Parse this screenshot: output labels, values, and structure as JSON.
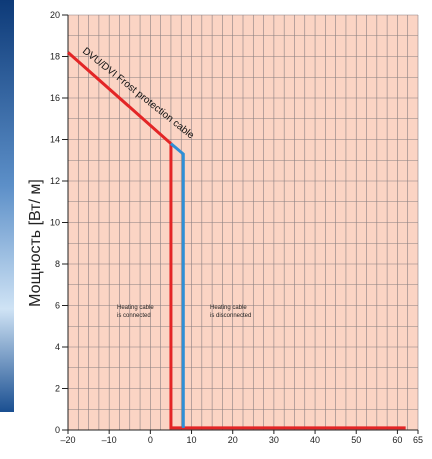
{
  "chart_data": {
    "type": "line",
    "ylabel": "Мощность [Вт/ м]",
    "xlabel": "",
    "xlim": [
      -20,
      65
    ],
    "ylim": [
      0,
      20
    ],
    "x_ticks": [
      -20,
      -10,
      0,
      10,
      20,
      30,
      40,
      50,
      60,
      65
    ],
    "x_tick_labels": [
      "–20",
      "–10",
      "0",
      "10",
      "20",
      "30",
      "40",
      "50",
      "60",
      "65"
    ],
    "y_ticks": [
      0,
      2,
      4,
      6,
      8,
      10,
      12,
      14,
      16,
      18,
      20
    ],
    "y_tick_labels": [
      "0",
      "2",
      "4",
      "6",
      "8",
      "10",
      "12",
      "14",
      "16",
      "18",
      "20"
    ],
    "series": [
      {
        "color": "#e32526",
        "points": [
          [
            -20,
            18.2
          ],
          [
            5,
            13.8
          ],
          [
            5,
            13.8
          ],
          [
            5,
            0.1
          ],
          [
            62,
            0.1
          ]
        ]
      },
      {
        "color": "#2e8fd6",
        "points": [
          [
            5,
            13.8
          ],
          [
            8,
            13.3
          ],
          [
            8,
            0.1
          ]
        ]
      }
    ],
    "annotations": {
      "curve_label": "DVU/DVI Frost protection cable",
      "connected": [
        "Heating cable",
        "is connected"
      ],
      "disconnected": [
        "Heating cable",
        "is disconnected"
      ]
    },
    "grid": true,
    "plot_background": "#fbd4c4",
    "grid_color": "#8a7f80"
  }
}
